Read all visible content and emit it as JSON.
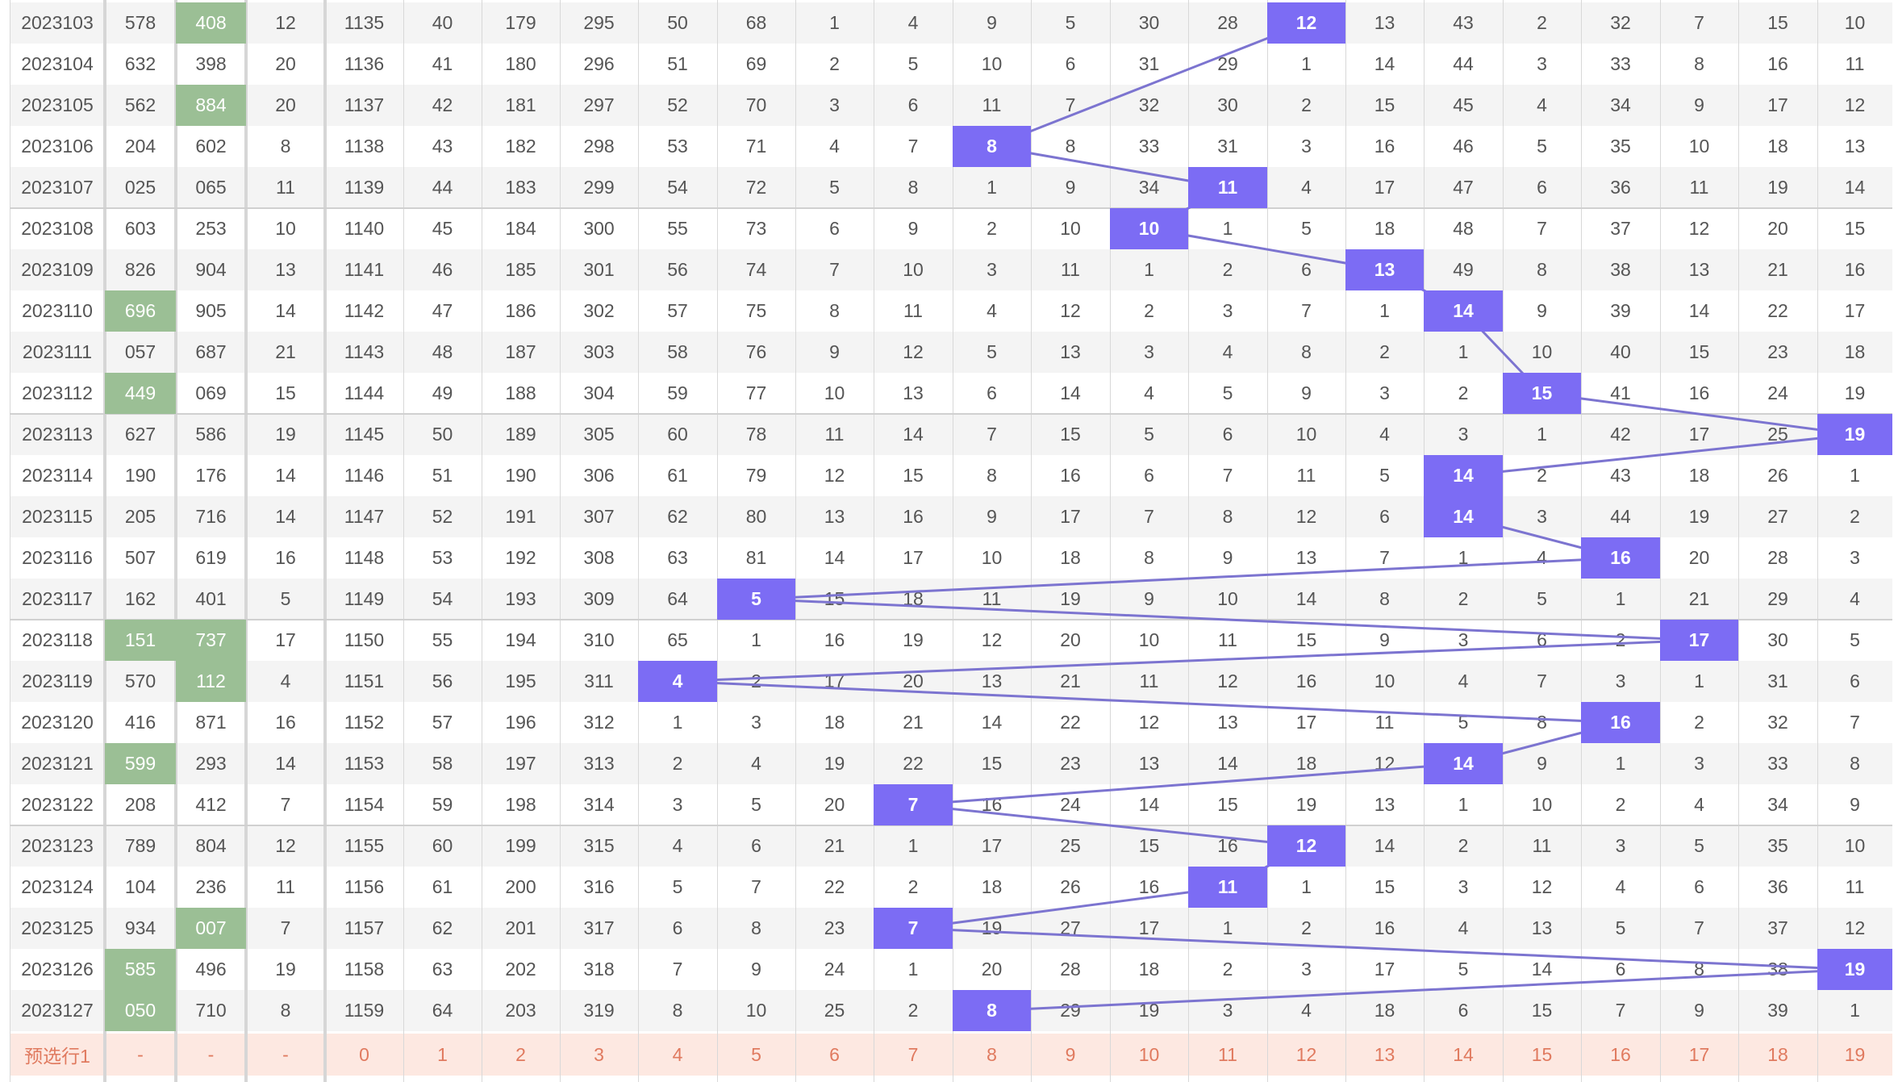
{
  "colors": {
    "accent": "#7c6cf4",
    "line": "#7c74d0",
    "green": "#9bbf95",
    "footer_bg": "#fde8e1",
    "footer_text": "#e07a5f"
  },
  "rows": [
    {
      "period": "2023103",
      "c1": "578",
      "c2": "408",
      "c1h": false,
      "c2h": true,
      "span": "12",
      "a": "1135",
      "b": "40",
      "c": "179",
      "d": "295",
      "e": "50",
      "f": "68",
      "dist": [
        "1",
        "4",
        "9",
        "5",
        "30",
        "28",
        "12",
        "13",
        "43",
        "2",
        "32",
        "7",
        "15",
        "10"
      ],
      "hit": 12
    },
    {
      "period": "2023104",
      "c1": "632",
      "c2": "398",
      "c1h": false,
      "c2h": false,
      "span": "20",
      "a": "1136",
      "b": "41",
      "c": "180",
      "d": "296",
      "e": "51",
      "f": "69",
      "dist": [
        "2",
        "5",
        "10",
        "6",
        "31",
        "29",
        "1",
        "14",
        "44",
        "3",
        "33",
        "8",
        "16",
        "11"
      ],
      "hit": null
    },
    {
      "period": "2023105",
      "c1": "562",
      "c2": "884",
      "c1h": false,
      "c2h": true,
      "span": "20",
      "a": "1137",
      "b": "42",
      "c": "181",
      "d": "297",
      "e": "52",
      "f": "70",
      "dist": [
        "3",
        "6",
        "11",
        "7",
        "32",
        "30",
        "2",
        "15",
        "45",
        "4",
        "34",
        "9",
        "17",
        "12"
      ],
      "hit": null
    },
    {
      "period": "2023106",
      "c1": "204",
      "c2": "602",
      "c1h": false,
      "c2h": false,
      "span": "8",
      "a": "1138",
      "b": "43",
      "c": "182",
      "d": "298",
      "e": "53",
      "f": "71",
      "dist": [
        "4",
        "7",
        "8",
        "8",
        "33",
        "31",
        "3",
        "16",
        "46",
        "5",
        "35",
        "10",
        "18",
        "13"
      ],
      "hit": 8
    },
    {
      "period": "2023107",
      "c1": "025",
      "c2": "065",
      "c1h": false,
      "c2h": false,
      "span": "11",
      "a": "1139",
      "b": "44",
      "c": "183",
      "d": "299",
      "e": "54",
      "f": "72",
      "dist": [
        "5",
        "8",
        "1",
        "9",
        "34",
        "11",
        "4",
        "17",
        "47",
        "6",
        "36",
        "11",
        "19",
        "14"
      ],
      "hit": 11
    },
    {
      "period": "2023108",
      "c1": "603",
      "c2": "253",
      "c1h": false,
      "c2h": false,
      "span": "10",
      "a": "1140",
      "b": "45",
      "c": "184",
      "d": "300",
      "e": "55",
      "f": "73",
      "dist": [
        "6",
        "9",
        "2",
        "10",
        "10",
        "1",
        "5",
        "18",
        "48",
        "7",
        "37",
        "12",
        "20",
        "15"
      ],
      "hit": 10
    },
    {
      "period": "2023109",
      "c1": "826",
      "c2": "904",
      "c1h": false,
      "c2h": false,
      "span": "13",
      "a": "1141",
      "b": "46",
      "c": "185",
      "d": "301",
      "e": "56",
      "f": "74",
      "dist": [
        "7",
        "10",
        "3",
        "11",
        "1",
        "2",
        "6",
        "13",
        "49",
        "8",
        "38",
        "13",
        "21",
        "16"
      ],
      "hit": 13
    },
    {
      "period": "2023110",
      "c1": "696",
      "c2": "905",
      "c1h": true,
      "c2h": false,
      "span": "14",
      "a": "1142",
      "b": "47",
      "c": "186",
      "d": "302",
      "e": "57",
      "f": "75",
      "dist": [
        "8",
        "11",
        "4",
        "12",
        "2",
        "3",
        "7",
        "1",
        "14",
        "9",
        "39",
        "14",
        "22",
        "17"
      ],
      "hit": 14
    },
    {
      "period": "2023111",
      "c1": "057",
      "c2": "687",
      "c1h": false,
      "c2h": false,
      "span": "21",
      "a": "1143",
      "b": "48",
      "c": "187",
      "d": "303",
      "e": "58",
      "f": "76",
      "dist": [
        "9",
        "12",
        "5",
        "13",
        "3",
        "4",
        "8",
        "2",
        "1",
        "10",
        "40",
        "15",
        "23",
        "18"
      ],
      "hit": null
    },
    {
      "period": "2023112",
      "c1": "449",
      "c2": "069",
      "c1h": true,
      "c2h": false,
      "span": "15",
      "a": "1144",
      "b": "49",
      "c": "188",
      "d": "304",
      "e": "59",
      "f": "77",
      "dist": [
        "10",
        "13",
        "6",
        "14",
        "4",
        "5",
        "9",
        "3",
        "2",
        "15",
        "41",
        "16",
        "24",
        "19"
      ],
      "hit": 15
    },
    {
      "period": "2023113",
      "c1": "627",
      "c2": "586",
      "c1h": false,
      "c2h": false,
      "span": "19",
      "a": "1145",
      "b": "50",
      "c": "189",
      "d": "305",
      "e": "60",
      "f": "78",
      "dist": [
        "11",
        "14",
        "7",
        "15",
        "5",
        "6",
        "10",
        "4",
        "3",
        "1",
        "42",
        "17",
        "25",
        "19"
      ],
      "hit": 19
    },
    {
      "period": "2023114",
      "c1": "190",
      "c2": "176",
      "c1h": false,
      "c2h": false,
      "span": "14",
      "a": "1146",
      "b": "51",
      "c": "190",
      "d": "306",
      "e": "61",
      "f": "79",
      "dist": [
        "12",
        "15",
        "8",
        "16",
        "6",
        "7",
        "11",
        "5",
        "14",
        "2",
        "43",
        "18",
        "26",
        "1"
      ],
      "hit": 14
    },
    {
      "period": "2023115",
      "c1": "205",
      "c2": "716",
      "c1h": false,
      "c2h": false,
      "span": "14",
      "a": "1147",
      "b": "52",
      "c": "191",
      "d": "307",
      "e": "62",
      "f": "80",
      "dist": [
        "13",
        "16",
        "9",
        "17",
        "7",
        "8",
        "12",
        "6",
        "14",
        "3",
        "44",
        "19",
        "27",
        "2"
      ],
      "hit": 14
    },
    {
      "period": "2023116",
      "c1": "507",
      "c2": "619",
      "c1h": false,
      "c2h": false,
      "span": "16",
      "a": "1148",
      "b": "53",
      "c": "192",
      "d": "308",
      "e": "63",
      "f": "81",
      "dist": [
        "14",
        "17",
        "10",
        "18",
        "8",
        "9",
        "13",
        "7",
        "1",
        "4",
        "16",
        "20",
        "28",
        "3"
      ],
      "hit": 16
    },
    {
      "period": "2023117",
      "c1": "162",
      "c2": "401",
      "c1h": false,
      "c2h": false,
      "span": "5",
      "a": "1149",
      "b": "54",
      "c": "193",
      "d": "309",
      "e": "64",
      "f": "5",
      "dist": [
        "15",
        "18",
        "11",
        "19",
        "9",
        "10",
        "14",
        "8",
        "2",
        "5",
        "1",
        "21",
        "29",
        "4"
      ],
      "hit": 5
    },
    {
      "period": "2023118",
      "c1": "151",
      "c2": "737",
      "c1h": true,
      "c2h": true,
      "span": "17",
      "a": "1150",
      "b": "55",
      "c": "194",
      "d": "310",
      "e": "65",
      "f": "1",
      "dist": [
        "16",
        "19",
        "12",
        "20",
        "10",
        "11",
        "15",
        "9",
        "3",
        "6",
        "2",
        "17",
        "30",
        "5"
      ],
      "hit": 17
    },
    {
      "period": "2023119",
      "c1": "570",
      "c2": "112",
      "c1h": false,
      "c2h": true,
      "span": "4",
      "a": "1151",
      "b": "56",
      "c": "195",
      "d": "311",
      "e": "4",
      "f": "2",
      "dist": [
        "17",
        "20",
        "13",
        "21",
        "11",
        "12",
        "16",
        "10",
        "4",
        "7",
        "3",
        "1",
        "31",
        "6"
      ],
      "hit": 4
    },
    {
      "period": "2023120",
      "c1": "416",
      "c2": "871",
      "c1h": false,
      "c2h": false,
      "span": "16",
      "a": "1152",
      "b": "57",
      "c": "196",
      "d": "312",
      "e": "1",
      "f": "3",
      "dist": [
        "18",
        "21",
        "14",
        "22",
        "12",
        "13",
        "17",
        "11",
        "5",
        "8",
        "16",
        "2",
        "32",
        "7"
      ],
      "hit": 16
    },
    {
      "period": "2023121",
      "c1": "599",
      "c2": "293",
      "c1h": true,
      "c2h": false,
      "span": "14",
      "a": "1153",
      "b": "58",
      "c": "197",
      "d": "313",
      "e": "2",
      "f": "4",
      "dist": [
        "19",
        "22",
        "15",
        "23",
        "13",
        "14",
        "18",
        "12",
        "14",
        "9",
        "1",
        "3",
        "33",
        "8"
      ],
      "hit": 14
    },
    {
      "period": "2023122",
      "c1": "208",
      "c2": "412",
      "c1h": false,
      "c2h": false,
      "span": "7",
      "a": "1154",
      "b": "59",
      "c": "198",
      "d": "314",
      "e": "3",
      "f": "5",
      "dist": [
        "20",
        "7",
        "16",
        "24",
        "14",
        "15",
        "19",
        "13",
        "1",
        "10",
        "2",
        "4",
        "34",
        "9"
      ],
      "hit": 7
    },
    {
      "period": "2023123",
      "c1": "789",
      "c2": "804",
      "c1h": false,
      "c2h": false,
      "span": "12",
      "a": "1155",
      "b": "60",
      "c": "199",
      "d": "315",
      "e": "4",
      "f": "6",
      "dist": [
        "21",
        "1",
        "17",
        "25",
        "15",
        "16",
        "12",
        "14",
        "2",
        "11",
        "3",
        "5",
        "35",
        "10"
      ],
      "hit": 12
    },
    {
      "period": "2023124",
      "c1": "104",
      "c2": "236",
      "c1h": false,
      "c2h": false,
      "span": "11",
      "a": "1156",
      "b": "61",
      "c": "200",
      "d": "316",
      "e": "5",
      "f": "7",
      "dist": [
        "22",
        "2",
        "18",
        "26",
        "16",
        "11",
        "1",
        "15",
        "3",
        "12",
        "4",
        "6",
        "36",
        "11"
      ],
      "hit": 11
    },
    {
      "period": "2023125",
      "c1": "934",
      "c2": "007",
      "c1h": false,
      "c2h": true,
      "span": "7",
      "a": "1157",
      "b": "62",
      "c": "201",
      "d": "317",
      "e": "6",
      "f": "8",
      "dist": [
        "23",
        "7",
        "19",
        "27",
        "17",
        "1",
        "2",
        "16",
        "4",
        "13",
        "5",
        "7",
        "37",
        "12"
      ],
      "hit": 7
    },
    {
      "period": "2023126",
      "c1": "585",
      "c2": "496",
      "c1h": true,
      "c2h": false,
      "span": "19",
      "a": "1158",
      "b": "63",
      "c": "202",
      "d": "318",
      "e": "7",
      "f": "9",
      "dist": [
        "24",
        "1",
        "20",
        "28",
        "18",
        "2",
        "3",
        "17",
        "5",
        "14",
        "6",
        "8",
        "38",
        "19"
      ],
      "hit": 19
    },
    {
      "period": "2023127",
      "c1": "050",
      "c2": "710",
      "c1h": true,
      "c2h": false,
      "span": "8",
      "a": "1159",
      "b": "64",
      "c": "203",
      "d": "319",
      "e": "8",
      "f": "10",
      "dist": [
        "25",
        "2",
        "8",
        "29",
        "19",
        "3",
        "4",
        "18",
        "6",
        "15",
        "7",
        "9",
        "39",
        "1"
      ],
      "hit": 8
    }
  ],
  "footer": {
    "label": "预选行1",
    "cells": [
      "-",
      "-",
      "-",
      "0",
      "1",
      "2",
      "3",
      "4",
      "5",
      "6",
      "7",
      "8",
      "9",
      "10",
      "11",
      "12",
      "13",
      "14",
      "15",
      "16",
      "17",
      "18",
      "19"
    ]
  }
}
